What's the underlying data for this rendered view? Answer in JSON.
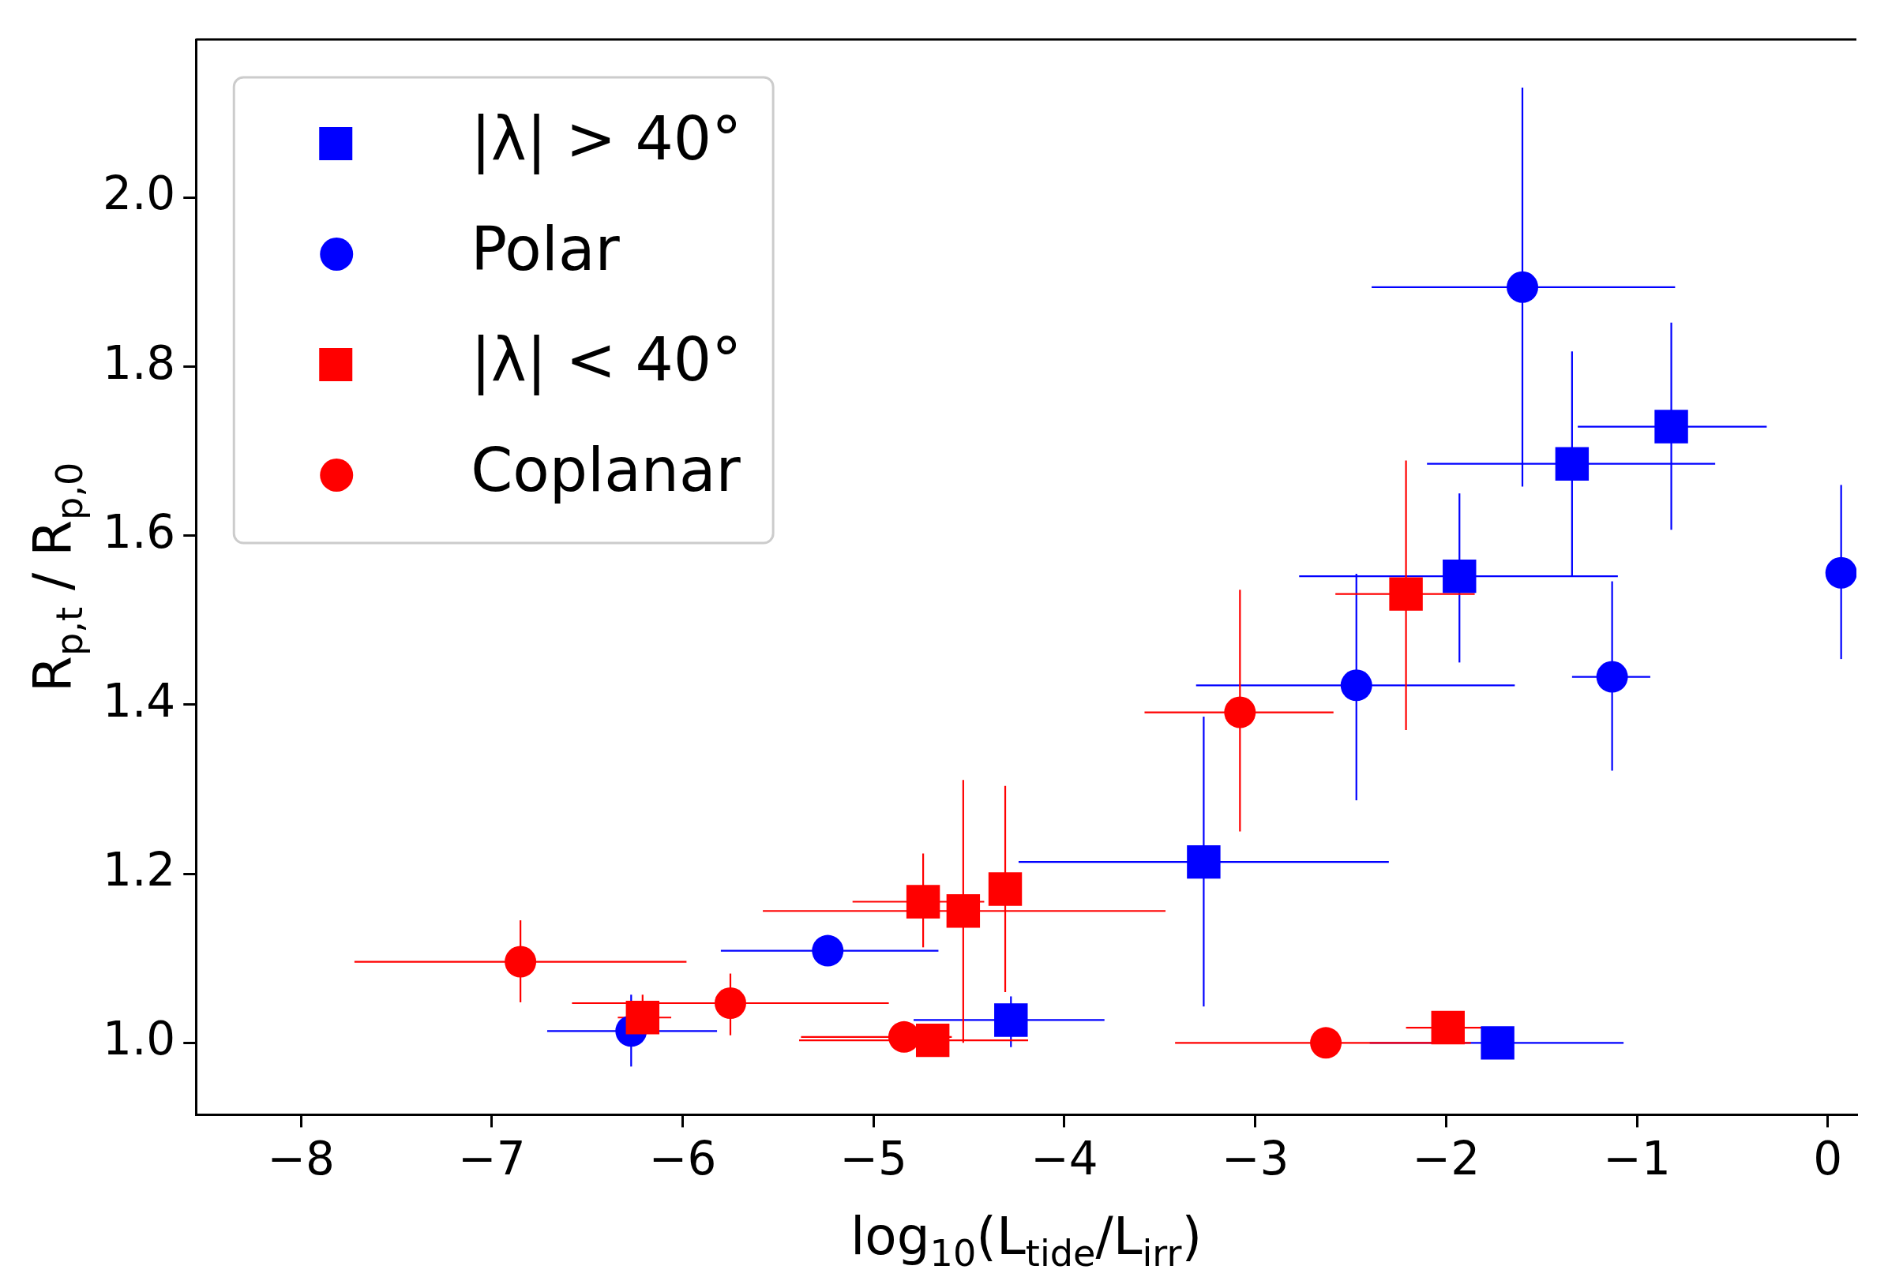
{
  "chart_data": {
    "type": "scatter",
    "xlabel": "log$_{10}$(L$_{tide}$/L$_{irr}$)",
    "ylabel": "R$_{p,t}$ / R$_{p,0}$",
    "xlim": [
      -8.55,
      0.15
    ],
    "ylim": [
      0.915,
      2.187
    ],
    "xticks": [
      {
        "value": -8,
        "label": "−8"
      },
      {
        "value": -7,
        "label": "−7"
      },
      {
        "value": -6,
        "label": "−6"
      },
      {
        "value": -5,
        "label": "−5"
      },
      {
        "value": -4,
        "label": "−4"
      },
      {
        "value": -3,
        "label": "−3"
      },
      {
        "value": -2,
        "label": "−2"
      },
      {
        "value": -1,
        "label": "−1"
      },
      0
    ],
    "yticks": [
      {
        "value": 1,
        "label": "1.0"
      },
      1.2,
      1.4,
      1.6,
      1.8,
      {
        "value": 2,
        "label": "2.0"
      }
    ],
    "legend": "top left",
    "series": [
      {
        "name": "|λ| > 40°",
        "color": "#0000ff",
        "marker": "square",
        "x": [
          -3.27,
          -1.93,
          -1.34,
          -0.82,
          -4.28,
          -1.73
        ],
        "values": [
          1.214,
          1.552,
          1.685,
          1.729,
          1.027,
          1.0
        ],
        "xerrors": [
          [
            -4.24,
            -2.3
          ],
          [
            -2.77,
            -1.1
          ],
          [
            -2.1,
            -0.59
          ],
          [
            -1.31,
            -0.32
          ],
          [
            -4.79,
            -3.79
          ],
          [
            -2.4,
            -1.07
          ]
        ],
        "errors": [
          [
            1.043,
            1.386
          ],
          [
            1.45,
            1.65
          ],
          [
            1.552,
            1.818
          ],
          [
            1.607,
            1.852
          ],
          [
            0.995,
            1.055
          ],
          null
        ]
      },
      {
        "name": "Polar",
        "color": "#0000ff",
        "marker": "circle",
        "x": [
          -6.27,
          -5.24,
          -2.47,
          -1.6,
          -1.13,
          0.07
        ],
        "values": [
          1.014,
          1.109,
          1.423,
          1.894,
          1.433,
          1.556
        ],
        "xerrors": [
          [
            -6.71,
            -5.82
          ],
          [
            -5.8,
            -4.66
          ],
          [
            -3.31,
            -1.64
          ],
          [
            -2.39,
            -0.8
          ],
          [
            -1.34,
            -0.93
          ],
          null
        ],
        "errors": [
          [
            0.972,
            1.057
          ],
          null,
          [
            1.287,
            1.555
          ],
          [
            1.658,
            2.13
          ],
          [
            1.322,
            1.546
          ],
          [
            1.454,
            1.66
          ]
        ]
      },
      {
        "name": "|λ| < 40°",
        "color": "#ff0000",
        "marker": "square",
        "x": [
          -6.21,
          -4.74,
          -4.53,
          -4.31,
          -4.69,
          -2.21,
          -1.99
        ],
        "values": [
          1.03,
          1.167,
          1.156,
          1.182,
          1.003,
          1.531,
          1.018
        ],
        "xerrors": [
          [
            -6.34,
            -6.06
          ],
          [
            -5.11,
            -4.42
          ],
          [
            -5.58,
            -3.47
          ],
          null,
          [
            -5.39,
            -4.19
          ],
          [
            -2.58,
            -1.85
          ],
          [
            -2.21,
            -1.76
          ]
        ],
        "errors": [
          [
            1.003,
            1.057
          ],
          [
            1.113,
            1.224
          ],
          [
            1.0,
            1.311
          ],
          [
            1.06,
            1.304
          ],
          null,
          [
            1.37,
            1.689
          ],
          null
        ]
      },
      {
        "name": "Coplanar",
        "color": "#ff0000",
        "marker": "circle",
        "x": [
          -6.85,
          -5.75,
          -4.84,
          -3.08,
          -2.63
        ],
        "values": [
          1.096,
          1.047,
          1.007,
          1.391,
          1.0
        ],
        "xerrors": [
          [
            -7.72,
            -5.98
          ],
          [
            -6.58,
            -4.92
          ],
          [
            -5.38,
            -4.59
          ],
          [
            -3.58,
            -2.59
          ],
          [
            -3.42,
            -1.87
          ]
        ],
        "errors": [
          [
            1.048,
            1.145
          ],
          [
            1.009,
            1.082
          ],
          null,
          [
            1.25,
            1.536
          ],
          null
        ]
      }
    ]
  }
}
